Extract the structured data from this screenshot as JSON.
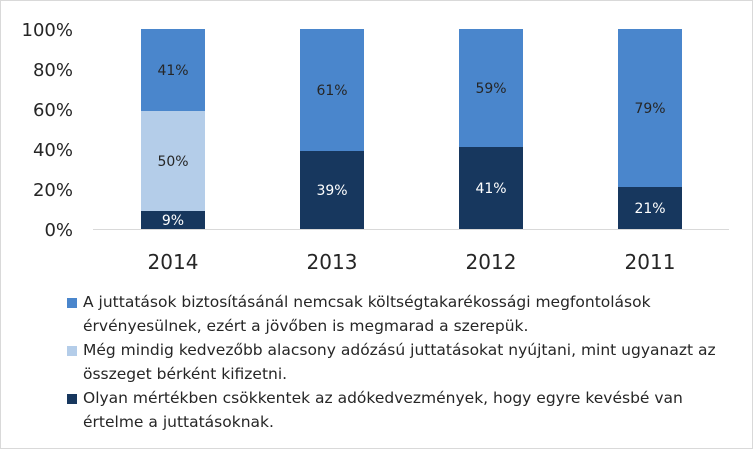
{
  "chart_data": {
    "type": "bar",
    "stacked": true,
    "percent": true,
    "categories": [
      "2014",
      "2013",
      "2012",
      "2011"
    ],
    "yticks": [
      "0%",
      "20%",
      "40%",
      "60%",
      "80%",
      "100%"
    ],
    "ylim": [
      0,
      100
    ],
    "series": [
      {
        "name": "Olyan mértékben csökkentek az adókedvezmények, hogy egyre kevésbé van értelme a juttatásoknak.",
        "color": "#17375e",
        "labelColor": "#ffffff",
        "values": [
          9,
          39,
          41,
          21
        ],
        "labels": [
          "9%",
          "39%",
          "41%",
          "21%"
        ]
      },
      {
        "name": "Még mindig kedvezőbb alacsony adózású juttatásokat nyújtani, mint ugyanazt az összeget bérként kifizetni.",
        "color": "#b4cde9",
        "labelColor": "#262626",
        "values": [
          50,
          0,
          0,
          0
        ],
        "labels": [
          "50%",
          "",
          "",
          ""
        ]
      },
      {
        "name": "A juttatások biztosításánál nemcsak költségtakarékossági megfontolások érvényesülnek, ezért a jövőben is megmarad a szerepük.",
        "color": "#4a86cc",
        "labelColor": "#262626",
        "values": [
          41,
          61,
          59,
          79
        ],
        "labels": [
          "41%",
          "61%",
          "59%",
          "79%"
        ]
      }
    ],
    "legend_order": [
      2,
      1,
      0
    ],
    "legend_position": "bottom",
    "grid": false
  }
}
